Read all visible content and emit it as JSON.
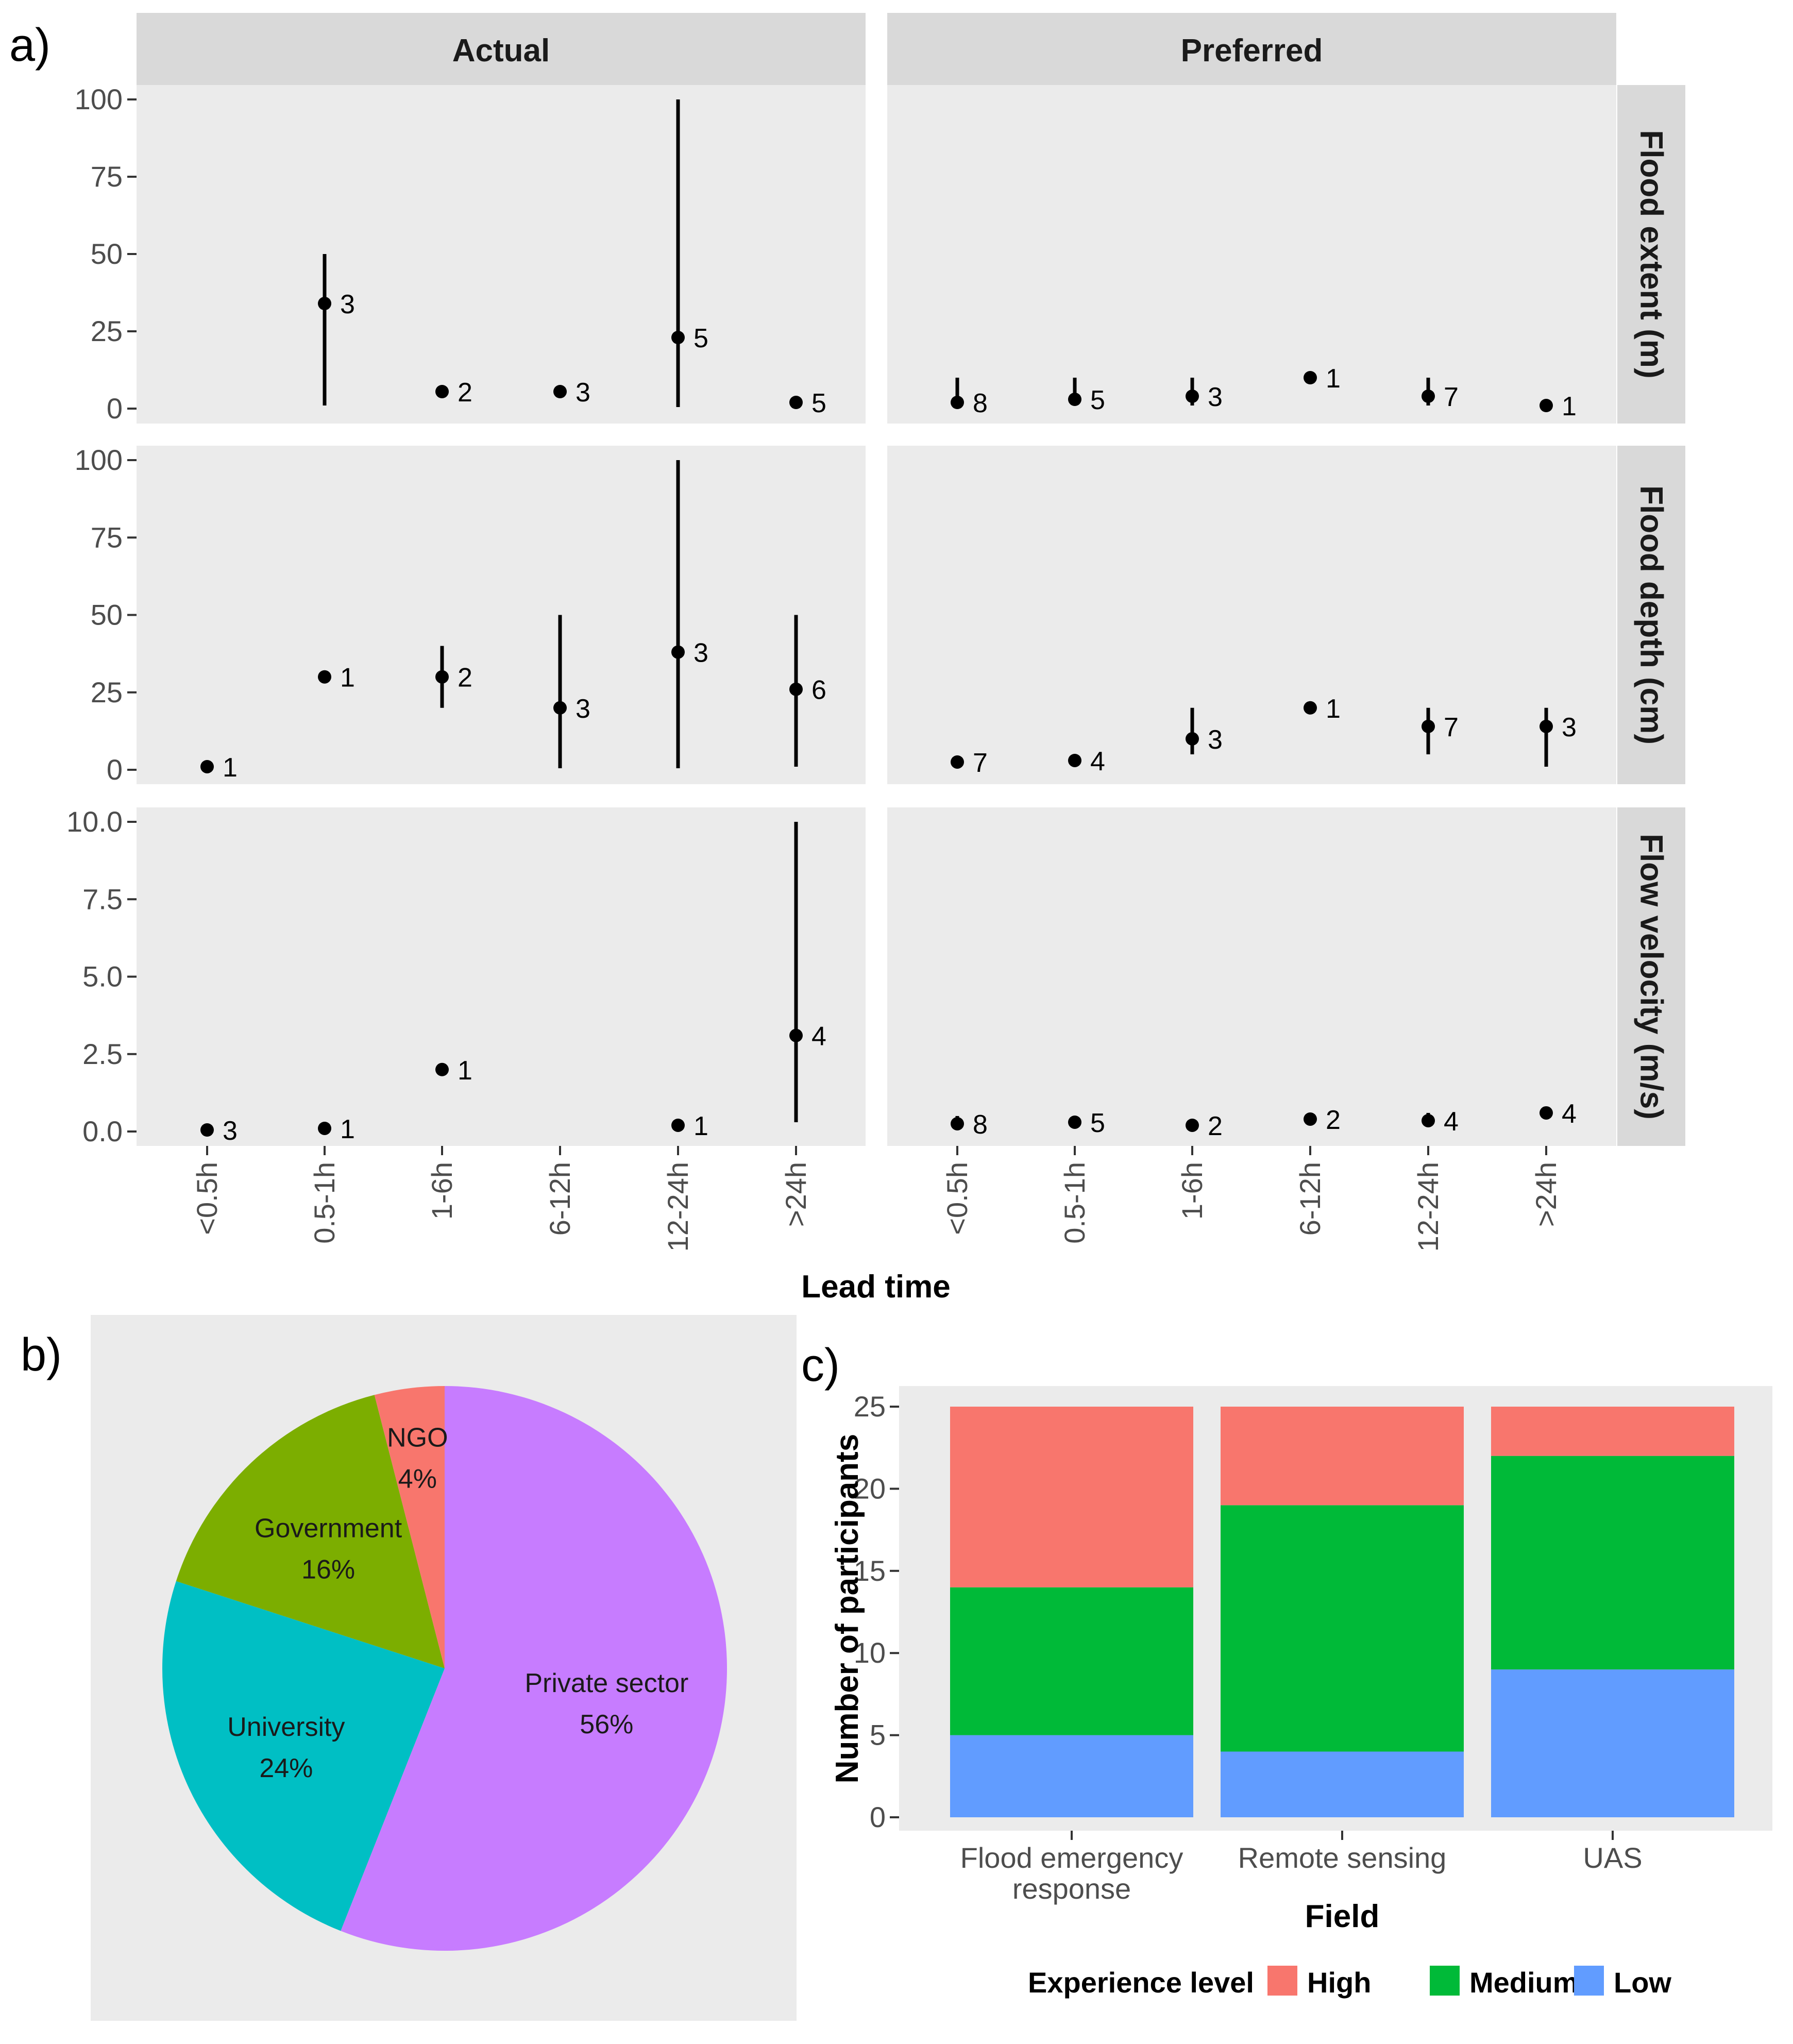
{
  "panel_labels": {
    "a": "a)",
    "b": "b)",
    "c": "c)"
  },
  "chart_data": [
    {
      "id": "a",
      "type": "scatter",
      "description_label": "Lead time",
      "xlabel": "Lead time",
      "columns": [
        "Actual",
        "Preferred"
      ],
      "rows": [
        "Flood extent (m)",
        "Flood depth (cm)",
        "Flow velocity (m/s)"
      ],
      "categories": [
        "<0.5h",
        "0.5-1h",
        "1-6h",
        "6-12h",
        "12-24h",
        ">24h"
      ],
      "row_axes": [
        {
          "ylim": [
            0,
            100
          ],
          "ticks": [
            "0",
            "25",
            "50",
            "75",
            "100"
          ],
          "tick_values": [
            0,
            25,
            50,
            75,
            100
          ]
        },
        {
          "ylim": [
            0,
            100
          ],
          "ticks": [
            "0",
            "25",
            "50",
            "75",
            "100"
          ],
          "tick_values": [
            0,
            25,
            50,
            75,
            100
          ]
        },
        {
          "ylim": [
            0,
            10
          ],
          "ticks": [
            "0.0",
            "2.5",
            "5.0",
            "7.5",
            "10.0"
          ],
          "tick_values": [
            0,
            2.5,
            5,
            7.5,
            10
          ]
        }
      ],
      "facets": [
        {
          "row": 0,
          "col": 0,
          "points": [
            null,
            {
              "y": 34,
              "lo": 1,
              "hi": 50,
              "n": "3"
            },
            {
              "y": 5.5,
              "lo": 5.5,
              "hi": 5.5,
              "n": "2"
            },
            {
              "y": 5.5,
              "lo": 5.5,
              "hi": 5.5,
              "n": "3"
            },
            {
              "y": 23,
              "lo": 0.5,
              "hi": 100,
              "n": "5"
            },
            {
              "y": 2,
              "lo": 1,
              "hi": 4,
              "n": "5"
            }
          ]
        },
        {
          "row": 0,
          "col": 1,
          "points": [
            {
              "y": 2,
              "lo": 0.5,
              "hi": 10,
              "n": "8"
            },
            {
              "y": 3,
              "lo": 1,
              "hi": 10,
              "n": "5"
            },
            {
              "y": 4,
              "lo": 1,
              "hi": 10,
              "n": "3"
            },
            {
              "y": 10,
              "lo": 10,
              "hi": 10,
              "n": "1"
            },
            {
              "y": 4,
              "lo": 1,
              "hi": 10,
              "n": "7"
            },
            {
              "y": 1,
              "lo": 1,
              "hi": 1,
              "n": "1"
            }
          ]
        },
        {
          "row": 1,
          "col": 0,
          "points": [
            {
              "y": 1,
              "lo": 1,
              "hi": 1,
              "n": "1"
            },
            {
              "y": 30,
              "lo": 30,
              "hi": 30,
              "n": "1"
            },
            {
              "y": 30,
              "lo": 20,
              "hi": 40,
              "n": "2"
            },
            {
              "y": 20,
              "lo": 0.5,
              "hi": 50,
              "n": "3"
            },
            {
              "y": 38,
              "lo": 0.5,
              "hi": 100,
              "n": "3"
            },
            {
              "y": 26,
              "lo": 1,
              "hi": 50,
              "n": "6"
            }
          ]
        },
        {
          "row": 1,
          "col": 1,
          "points": [
            {
              "y": 2.5,
              "lo": 1,
              "hi": 4,
              "n": "7"
            },
            {
              "y": 3,
              "lo": 3,
              "hi": 3,
              "n": "4"
            },
            {
              "y": 10,
              "lo": 5,
              "hi": 20,
              "n": "3"
            },
            {
              "y": 20,
              "lo": 20,
              "hi": 20,
              "n": "1"
            },
            {
              "y": 14,
              "lo": 5,
              "hi": 20,
              "n": "7"
            },
            {
              "y": 14,
              "lo": 1,
              "hi": 20,
              "n": "3"
            }
          ]
        },
        {
          "row": 2,
          "col": 0,
          "points": [
            {
              "y": 0.05,
              "lo": 0.05,
              "hi": 0.05,
              "n": "3"
            },
            {
              "y": 0.1,
              "lo": 0.1,
              "hi": 0.1,
              "n": "1"
            },
            {
              "y": 2,
              "lo": 2,
              "hi": 2,
              "n": "1"
            },
            null,
            {
              "y": 0.2,
              "lo": 0.2,
              "hi": 0.2,
              "n": "1"
            },
            {
              "y": 3.1,
              "lo": 0.3,
              "hi": 10,
              "n": "4"
            }
          ]
        },
        {
          "row": 2,
          "col": 1,
          "points": [
            {
              "y": 0.25,
              "lo": 0.1,
              "hi": 0.5,
              "n": "8"
            },
            {
              "y": 0.3,
              "lo": 0.2,
              "hi": 0.4,
              "n": "5"
            },
            {
              "y": 0.2,
              "lo": 0.2,
              "hi": 0.2,
              "n": "2"
            },
            {
              "y": 0.4,
              "lo": 0.4,
              "hi": 0.4,
              "n": "2"
            },
            {
              "y": 0.35,
              "lo": 0.2,
              "hi": 0.6,
              "n": "4"
            },
            {
              "y": 0.6,
              "lo": 0.6,
              "hi": 0.6,
              "n": "4"
            }
          ]
        }
      ]
    },
    {
      "id": "b",
      "type": "pie",
      "slices": [
        {
          "label": "Private sector",
          "pct": "56%",
          "value": 56,
          "color": "#C77CFF"
        },
        {
          "label": "University",
          "pct": "24%",
          "value": 24,
          "color": "#00BFC4"
        },
        {
          "label": "Government",
          "pct": "16%",
          "value": 16,
          "color": "#7CAE00"
        },
        {
          "label": "NGO",
          "pct": "4%",
          "value": 4,
          "color": "#F8766D"
        }
      ]
    },
    {
      "id": "c",
      "type": "bar",
      "stacked": true,
      "xlabel": "Field",
      "ylabel": "Number of participants",
      "ylim": [
        0,
        25
      ],
      "yticks": [
        "0",
        "5",
        "10",
        "15",
        "20",
        "25"
      ],
      "ytick_values": [
        0,
        5,
        10,
        15,
        20,
        25
      ],
      "categories": [
        {
          "lines": [
            "Flood emergency",
            "response"
          ]
        },
        {
          "lines": [
            "Remote sensing"
          ]
        },
        {
          "lines": [
            "UAS"
          ]
        }
      ],
      "series": [
        {
          "name": "Low",
          "color": "#619CFF",
          "values": [
            5,
            4,
            9
          ]
        },
        {
          "name": "Medium",
          "color": "#00BA38",
          "values": [
            9,
            15,
            13
          ]
        },
        {
          "name": "High",
          "color": "#F8766D",
          "values": [
            11,
            6,
            3
          ]
        }
      ],
      "legend": {
        "title": "Experience level",
        "order": [
          "High",
          "Medium",
          "Low"
        ]
      }
    }
  ]
}
